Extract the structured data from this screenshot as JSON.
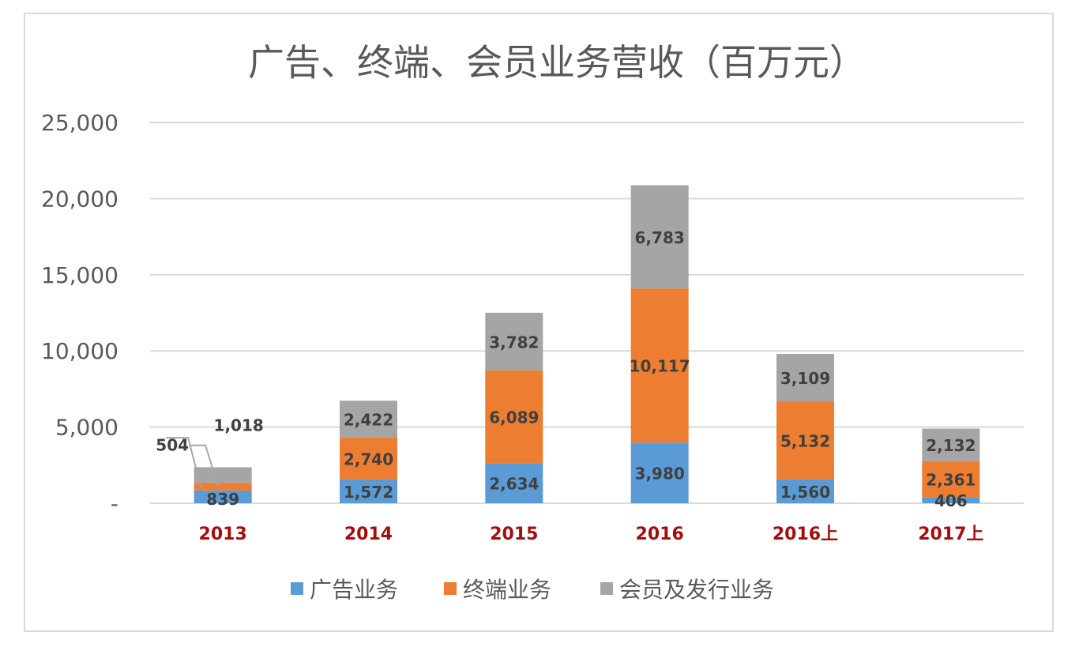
{
  "chart_data": {
    "type": "bar",
    "stacked": true,
    "title": "广告、终端、会员业务营收（百万元）",
    "categories": [
      "2013",
      "2014",
      "2015",
      "2016",
      "2016上",
      "2017上"
    ],
    "series": [
      {
        "name": "广告业务",
        "color": "#5b9bd5",
        "values": [
          839,
          1572,
          2634,
          3980,
          1560,
          406
        ]
      },
      {
        "name": "终端业务",
        "color": "#ed7d31",
        "values": [
          504,
          2740,
          6089,
          10117,
          5132,
          2361
        ]
      },
      {
        "name": "会员及发行业务",
        "color": "#a5a5a5",
        "values": [
          1018,
          2422,
          3782,
          6783,
          3109,
          2132
        ]
      }
    ],
    "data_labels": [
      [
        "839",
        "1,572",
        "2,634",
        "3,980",
        "1,560",
        "406"
      ],
      [
        "504",
        "2,740",
        "6,089",
        "10,117",
        "5,132",
        "2,361"
      ],
      [
        "1,018",
        "2,422",
        "3,782",
        "6,783",
        "3,109",
        "2,132"
      ]
    ],
    "yticks": [
      {
        "value": 0,
        "label": "-"
      },
      {
        "value": 5000,
        "label": "5,000"
      },
      {
        "value": 10000,
        "label": "10,000"
      },
      {
        "value": 15000,
        "label": "15,000"
      },
      {
        "value": 20000,
        "label": "20,000"
      },
      {
        "value": 25000,
        "label": "25,000"
      }
    ],
    "ylim": [
      0,
      25000
    ],
    "grid": true,
    "legend_position": "bottom",
    "xtick_color": "#a50d0d"
  }
}
